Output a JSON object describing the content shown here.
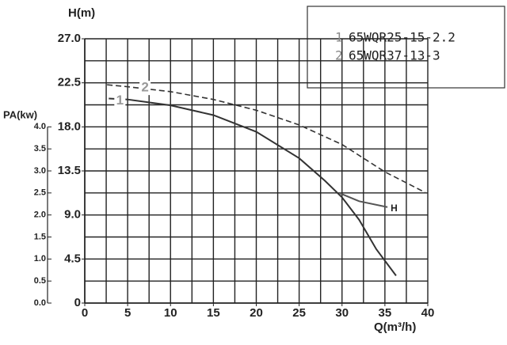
{
  "chart_data": {
    "type": "line",
    "y_label": "H(m)",
    "y2_label": "PA(kw)",
    "x_label": "Q(m³/h)",
    "xlim": [
      0,
      40
    ],
    "xticks": [
      0,
      5,
      10,
      15,
      20,
      25,
      30,
      35,
      40
    ],
    "ylim": [
      0,
      27
    ],
    "yticks": [
      0,
      4.5,
      {
        "value": 9,
        "label": "9.0"
      },
      13.5,
      {
        "value": 18,
        "label": "18.0"
      },
      22.5,
      {
        "value": 27,
        "label": "27.0"
      }
    ],
    "y2lim": [
      0,
      4
    ],
    "y2ticks": [
      {
        "value": 0,
        "label": "0.0"
      },
      0.5,
      {
        "value": 1,
        "label": "1.0"
      },
      1.5,
      {
        "value": 2,
        "label": "2.0"
      },
      2.5,
      {
        "value": 3,
        "label": "3.0"
      },
      3.5,
      {
        "value": 4,
        "label": "4.0"
      }
    ],
    "x_grid": [
      0,
      2.5,
      5,
      7.5,
      10,
      12.5,
      15,
      17.5,
      20,
      22.5,
      25,
      27.5,
      30,
      32.5,
      35,
      37.5,
      40
    ],
    "y_grid": [
      0,
      2.25,
      4.5,
      6.75,
      9,
      11.25,
      13.5,
      15.75,
      18,
      20.25,
      22.5,
      24.75,
      27
    ],
    "grid": true,
    "series": [
      {
        "label": "1",
        "name": "65WQR25-15-2.2",
        "color": "#333333",
        "dash": false,
        "x": [
          2.8,
          5,
          10,
          15,
          20,
          25,
          28,
          30,
          32,
          34,
          36.3
        ],
        "values": [
          20.9,
          20.8,
          20.2,
          19.2,
          17.5,
          14.8,
          12.5,
          10.8,
          8.5,
          5.5,
          2.8
        ]
      },
      {
        "label": "2",
        "name": "65WQR37-13-3",
        "color": "#333333",
        "dash": true,
        "x": [
          2.6,
          5,
          10,
          15,
          20,
          25,
          30,
          35,
          39.7
        ],
        "values": [
          22.3,
          22.1,
          21.6,
          20.8,
          19.7,
          18.2,
          16.2,
          13.4,
          11.3
        ]
      },
      {
        "name": "H",
        "color": "#555555",
        "dash": false,
        "x": [
          29.8,
          32,
          35.3
        ],
        "values": [
          11.2,
          10.4,
          9.8
        ]
      }
    ]
  }
}
